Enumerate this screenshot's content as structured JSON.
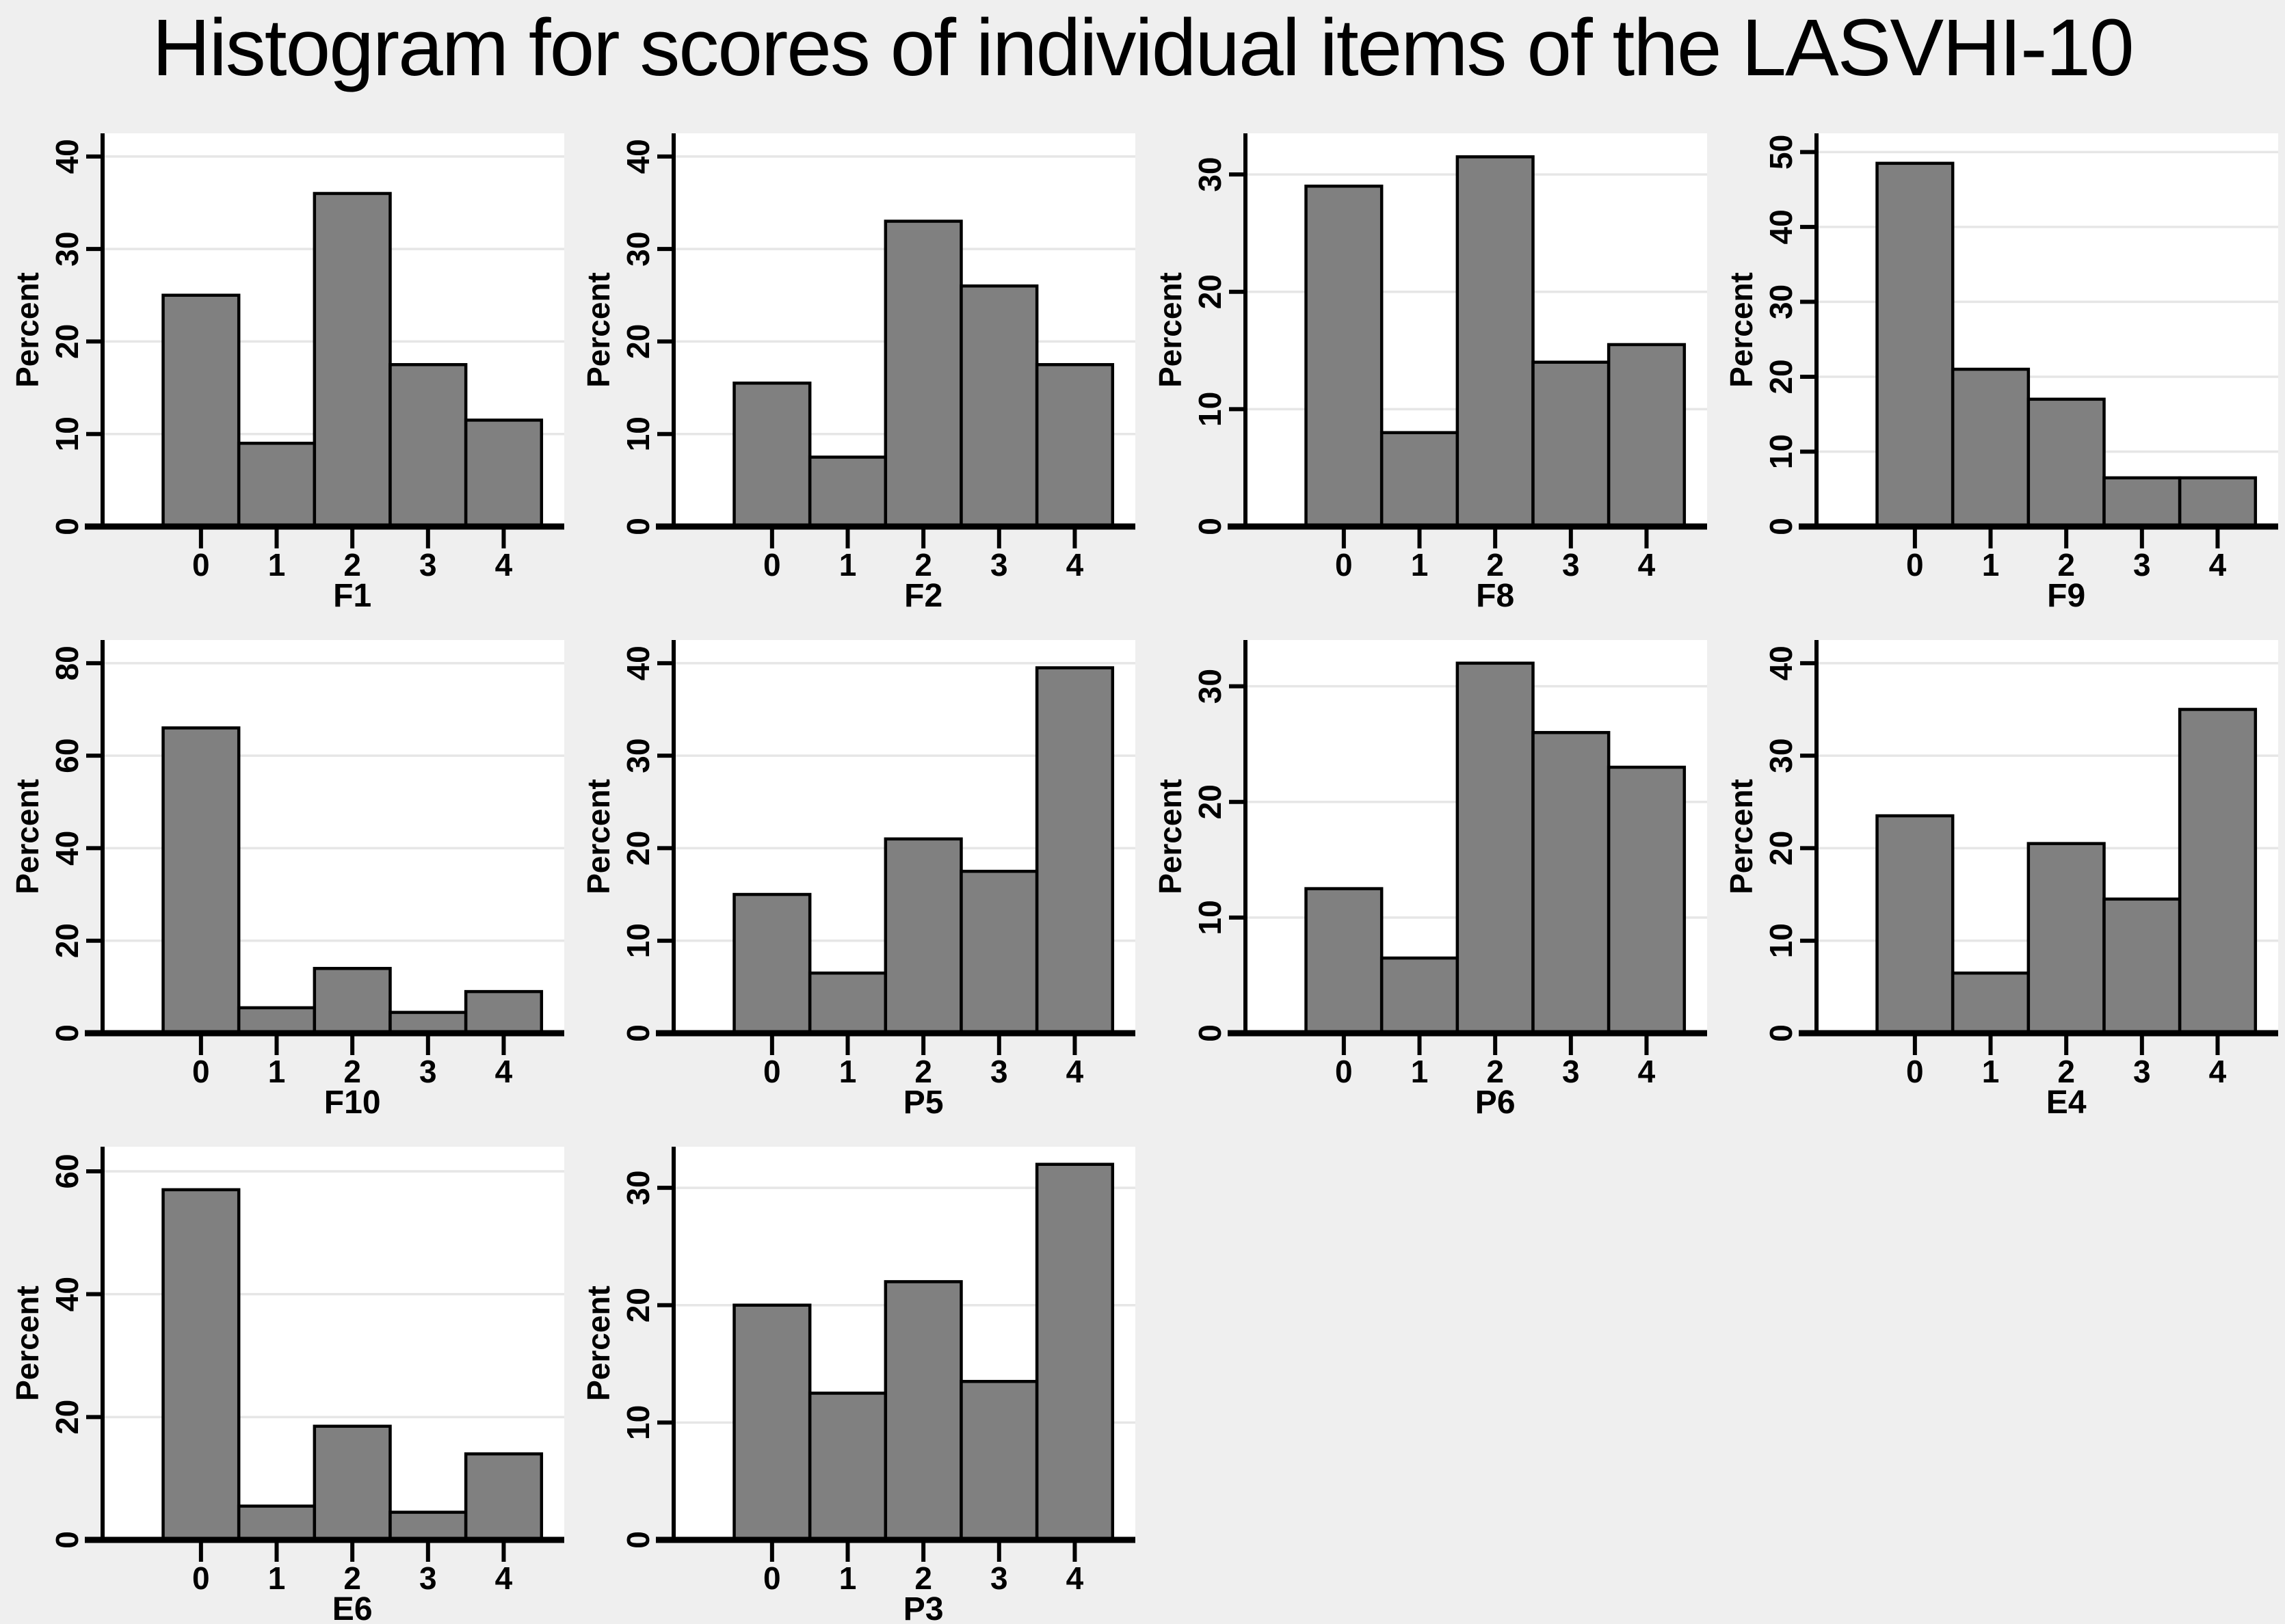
{
  "title": "Histogram for scores of individual items of the LASVHI-10",
  "ylabel": "Percent",
  "x_tick_labels": [
    "0",
    "1",
    "2",
    "3",
    "4"
  ],
  "colors": {
    "background": "#efefef",
    "plot_background": "#ffffff",
    "gridline": "#e6e6e6",
    "bar_fill": "#808080",
    "bar_border": "#000000",
    "axis": "#000000",
    "text": "#000000"
  },
  "chart_data": [
    {
      "type": "bar",
      "xlabel": "F1",
      "ylabel": "Percent",
      "categories": [
        0,
        1,
        2,
        3,
        4
      ],
      "values": [
        25,
        9,
        36,
        17.5,
        11.5
      ],
      "yticks": [
        0,
        10,
        20,
        30,
        40
      ],
      "ylim": [
        0,
        42.5
      ],
      "grid": true
    },
    {
      "type": "bar",
      "xlabel": "F2",
      "ylabel": "Percent",
      "categories": [
        0,
        1,
        2,
        3,
        4
      ],
      "values": [
        15.5,
        7.5,
        33,
        26,
        17.5
      ],
      "yticks": [
        0,
        10,
        20,
        30,
        40
      ],
      "ylim": [
        0,
        42.5
      ],
      "grid": true
    },
    {
      "type": "bar",
      "xlabel": "F8",
      "ylabel": "Percent",
      "categories": [
        0,
        1,
        2,
        3,
        4
      ],
      "values": [
        29,
        8,
        31.5,
        14,
        15.5
      ],
      "yticks": [
        0,
        10,
        20,
        30
      ],
      "ylim": [
        0,
        33.5
      ],
      "grid": true
    },
    {
      "type": "bar",
      "xlabel": "F9",
      "ylabel": "Percent",
      "categories": [
        0,
        1,
        2,
        3,
        4
      ],
      "values": [
        48.5,
        21,
        17,
        6.5,
        6.5
      ],
      "yticks": [
        0,
        10,
        20,
        30,
        40,
        50
      ],
      "ylim": [
        0,
        52.5
      ],
      "grid": true
    },
    {
      "type": "bar",
      "xlabel": "F10",
      "ylabel": "Percent",
      "categories": [
        0,
        1,
        2,
        3,
        4
      ],
      "values": [
        66,
        5.5,
        14,
        4.5,
        9
      ],
      "yticks": [
        0,
        20,
        40,
        60,
        80
      ],
      "ylim": [
        0,
        85
      ],
      "grid": true
    },
    {
      "type": "bar",
      "xlabel": "P5",
      "ylabel": "Percent",
      "categories": [
        0,
        1,
        2,
        3,
        4
      ],
      "values": [
        15,
        6.5,
        21,
        17.5,
        39.5
      ],
      "yticks": [
        0,
        10,
        20,
        30,
        40
      ],
      "ylim": [
        0,
        42.5
      ],
      "grid": true
    },
    {
      "type": "bar",
      "xlabel": "P6",
      "ylabel": "Percent",
      "categories": [
        0,
        1,
        2,
        3,
        4
      ],
      "values": [
        12.5,
        6.5,
        32,
        26,
        23
      ],
      "yticks": [
        0,
        10,
        20,
        30
      ],
      "ylim": [
        0,
        34
      ],
      "grid": true
    },
    {
      "type": "bar",
      "xlabel": "E4",
      "ylabel": "Percent",
      "categories": [
        0,
        1,
        2,
        3,
        4
      ],
      "values": [
        23.5,
        6.5,
        20.5,
        14.5,
        35
      ],
      "yticks": [
        0,
        10,
        20,
        30,
        40
      ],
      "ylim": [
        0,
        42.5
      ],
      "grid": true
    },
    {
      "type": "bar",
      "xlabel": "E6",
      "ylabel": "Percent",
      "categories": [
        0,
        1,
        2,
        3,
        4
      ],
      "values": [
        57,
        5.5,
        18.5,
        4.5,
        14
      ],
      "yticks": [
        0,
        20,
        40,
        60
      ],
      "ylim": [
        0,
        64
      ],
      "grid": true
    },
    {
      "type": "bar",
      "xlabel": "P3",
      "ylabel": "Percent",
      "categories": [
        0,
        1,
        2,
        3,
        4
      ],
      "values": [
        20,
        12.5,
        22,
        13.5,
        32
      ],
      "yticks": [
        0,
        10,
        20,
        30
      ],
      "ylim": [
        0,
        33.5
      ],
      "grid": true
    }
  ]
}
